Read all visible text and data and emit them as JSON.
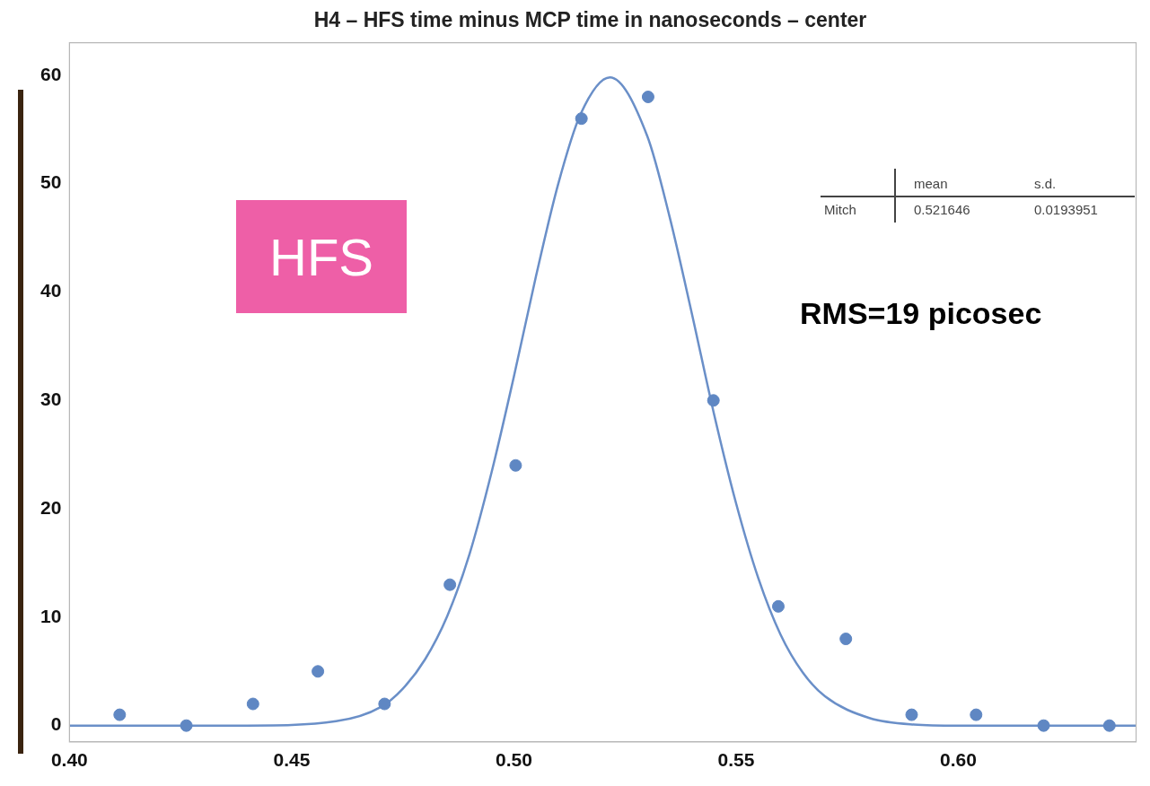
{
  "chart_data": {
    "type": "scatter",
    "title": "H4 – HFS time minus MCP time in nanoseconds – center",
    "series": [
      {
        "color": "#5f87c3",
        "x": [
          0.4113,
          0.4263,
          0.4413,
          0.4559,
          0.4709,
          0.4856,
          0.5004,
          0.5152,
          0.5302,
          0.5449,
          0.5595,
          0.5747,
          0.5895,
          0.604,
          0.6192,
          0.634
        ],
        "values": [
          1,
          0,
          2,
          5,
          2,
          13,
          24,
          56,
          58,
          30,
          11,
          8,
          1,
          1,
          0,
          0
        ]
      },
      {
        "type": "line",
        "marker": "none",
        "color": "#6a8fc8",
        "x": [
          0.4,
          0.44,
          0.46,
          0.47,
          0.475,
          0.48,
          0.485,
          0.49,
          0.495,
          0.5,
          0.505,
          0.51,
          0.515,
          0.5216,
          0.53,
          0.535,
          0.54,
          0.545,
          0.55,
          0.555,
          0.56,
          0.565,
          0.57,
          0.58,
          0.59,
          0.6,
          0.64
        ],
        "values": [
          0,
          0,
          0.4,
          1.7,
          3.4,
          6.1,
          10.1,
          15.8,
          23.4,
          32.2,
          41.5,
          50,
          56.4,
          59.8,
          54.4,
          47,
          38.1,
          28.8,
          20.5,
          13.6,
          8.4,
          4.9,
          2.7,
          0.7,
          0.1,
          0,
          0
        ]
      }
    ],
    "xlim": [
      0.4,
      0.64
    ],
    "xticks": [
      {
        "value": 0.4,
        "label": "0.40"
      },
      0.45,
      {
        "value": 0.5,
        "label": "0.50"
      },
      0.55,
      {
        "value": 0.6,
        "label": "0.60"
      }
    ],
    "ylim": [
      -1.5,
      63
    ],
    "yticks": [
      0,
      10,
      20,
      30,
      40,
      50,
      60
    ],
    "grid": false,
    "legend": false,
    "marker": "circle",
    "line_style": "solid",
    "annotations": [
      "HFS",
      "RMS=19 picosec",
      "mean",
      "s.d.",
      "Mitch",
      "0.521646",
      "0.0193951"
    ]
  }
}
